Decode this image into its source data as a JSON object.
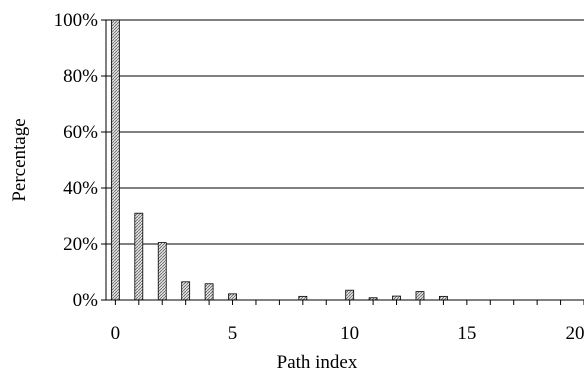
{
  "chart_data": {
    "type": "bar",
    "title": "",
    "xlabel": "Path index",
    "ylabel": "Percentage",
    "x": [
      0,
      1,
      2,
      3,
      4,
      5,
      6,
      7,
      8,
      9,
      10,
      11,
      12,
      13,
      14,
      15,
      16,
      17,
      18,
      19,
      20
    ],
    "values": [
      100,
      31,
      20.5,
      6.5,
      5.8,
      2.2,
      0,
      0,
      1.3,
      0,
      3.5,
      0.8,
      1.4,
      3,
      1.3,
      0,
      0,
      0,
      0,
      0,
      0
    ],
    "ylim": [
      0,
      100
    ],
    "xlim": [
      -0.4,
      20
    ],
    "yticks": [
      0,
      20,
      40,
      60,
      80,
      100
    ],
    "ytick_labels": [
      "0%",
      "20%",
      "40%",
      "60%",
      "80%",
      "100%"
    ],
    "xticks": [
      0,
      5,
      10,
      15,
      20
    ],
    "xtick_labels": [
      "0",
      "5",
      "10",
      "15",
      "20"
    ],
    "grid": "horizontal",
    "bar_fill": "hatched-gray",
    "colors": {
      "bar_fill": "#c8c8c8",
      "bar_stroke": "#000000",
      "grid": "#000000"
    }
  }
}
